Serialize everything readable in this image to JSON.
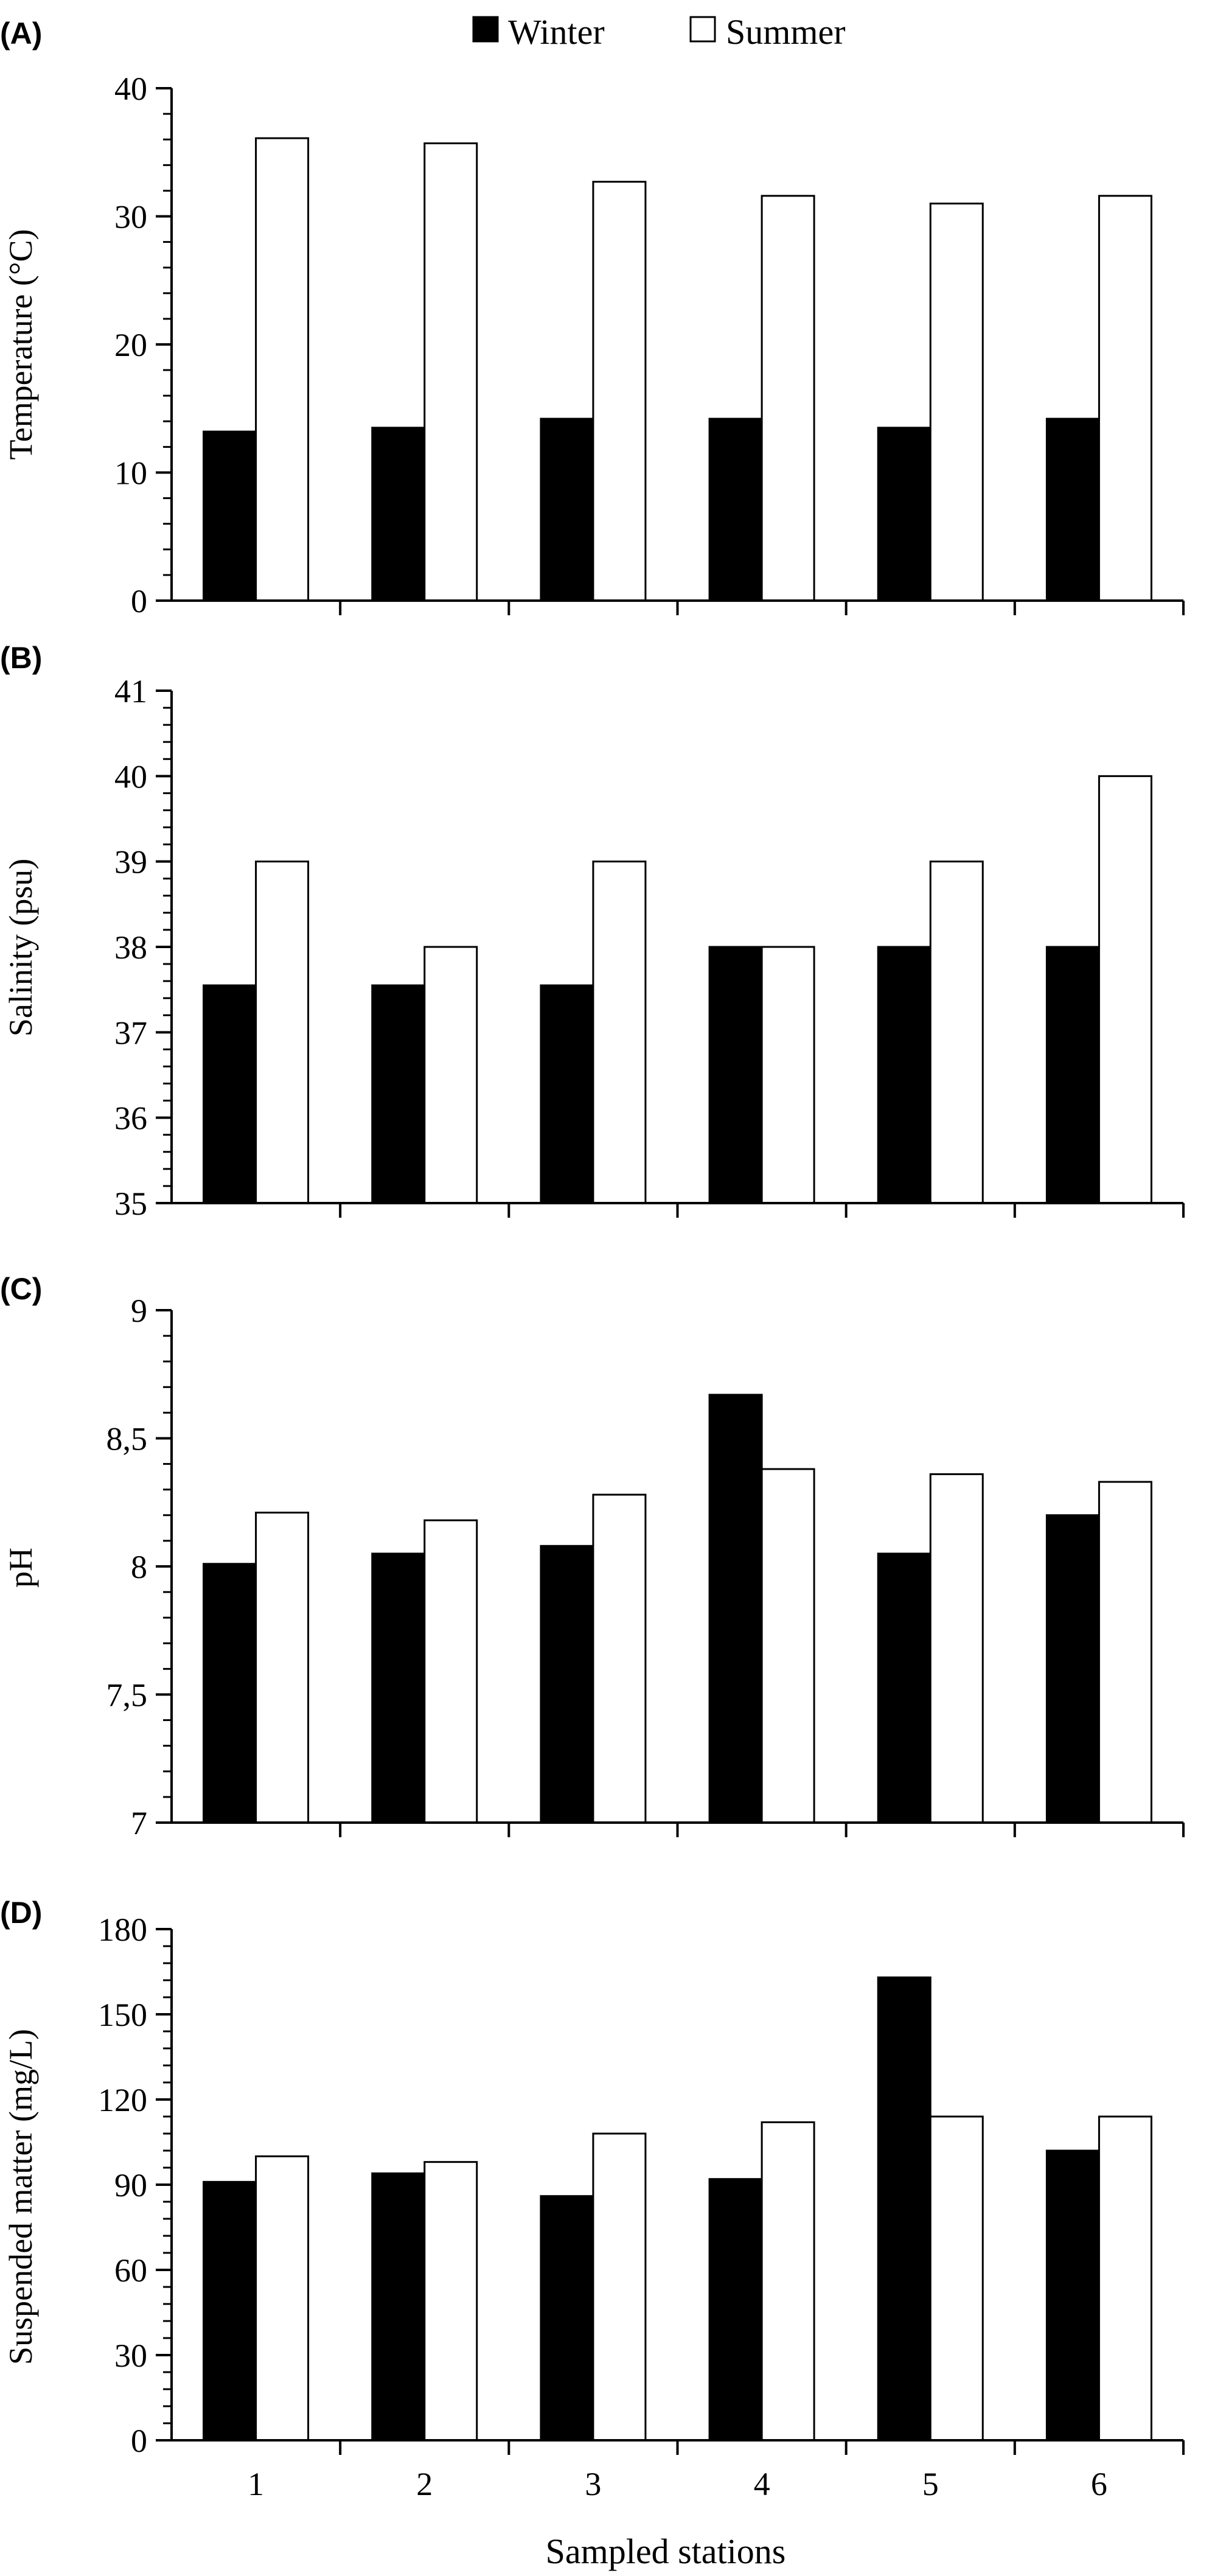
{
  "legend": {
    "placement": "top-center",
    "items": [
      {
        "label": "Winter",
        "color": "#000000"
      },
      {
        "label": "Summer",
        "color": "#ffffff"
      }
    ]
  },
  "chart_data": [
    {
      "panel_label": "(A)",
      "type": "bar",
      "categories": [
        "1",
        "2",
        "3",
        "4",
        "5",
        "6"
      ],
      "series": [
        {
          "name": "Winter",
          "color": "#000000",
          "values": [
            13.2,
            13.5,
            14.2,
            14.2,
            13.5,
            14.2
          ]
        },
        {
          "name": "Summer",
          "color": "#ffffff",
          "values": [
            36.1,
            35.7,
            32.7,
            31.6,
            31.0,
            31.6
          ]
        }
      ],
      "ylabel": "Temperature (°C)",
      "xlabel": "",
      "ylim": [
        0,
        40
      ],
      "yticks": [
        "0",
        "10",
        "20",
        "30",
        "40"
      ],
      "ytick_values": [
        0,
        10,
        20,
        30,
        40
      ],
      "minor_ticks_per_major": 5,
      "show_xtick_labels": false,
      "grid": false
    },
    {
      "panel_label": "(B)",
      "type": "bar",
      "categories": [
        "1",
        "2",
        "3",
        "4",
        "5",
        "6"
      ],
      "series": [
        {
          "name": "Winter",
          "color": "#000000",
          "values": [
            37.55,
            37.55,
            37.55,
            38.0,
            38.0,
            38.0
          ]
        },
        {
          "name": "Summer",
          "color": "#ffffff",
          "values": [
            39.0,
            38.0,
            39.0,
            38.0,
            39.0,
            40.0
          ]
        }
      ],
      "ylabel": "Salinity (psu)",
      "xlabel": "",
      "ylim": [
        35,
        41
      ],
      "yticks": [
        "35",
        "36",
        "37",
        "38",
        "39",
        "40",
        "41"
      ],
      "ytick_values": [
        35,
        36,
        37,
        38,
        39,
        40,
        41
      ],
      "minor_ticks_per_major": 5,
      "show_xtick_labels": false,
      "grid": false
    },
    {
      "panel_label": "(C)",
      "type": "bar",
      "categories": [
        "1",
        "2",
        "3",
        "4",
        "5",
        "6"
      ],
      "series": [
        {
          "name": "Winter",
          "color": "#000000",
          "values": [
            8.01,
            8.05,
            8.08,
            8.67,
            8.05,
            8.2
          ]
        },
        {
          "name": "Summer",
          "color": "#ffffff",
          "values": [
            8.21,
            8.18,
            8.28,
            8.38,
            8.36,
            8.33
          ]
        }
      ],
      "ylabel": "pH",
      "xlabel": "",
      "ylim": [
        7,
        9
      ],
      "yticks": [
        "7",
        "7,5",
        "8",
        "8,5",
        "9"
      ],
      "ytick_values": [
        7,
        7.5,
        8,
        8.5,
        9
      ],
      "minor_ticks_per_major": 5,
      "show_xtick_labels": false,
      "grid": false
    },
    {
      "panel_label": "(D)",
      "type": "bar",
      "categories": [
        "1",
        "2",
        "3",
        "4",
        "5",
        "6"
      ],
      "series": [
        {
          "name": "Winter",
          "color": "#000000",
          "values": [
            91,
            94,
            86,
            92,
            163,
            102
          ]
        },
        {
          "name": "Summer",
          "color": "#ffffff",
          "values": [
            100,
            98,
            108,
            112,
            114,
            114
          ]
        }
      ],
      "ylabel": "Suspended matter (mg/L)",
      "xlabel": "Sampled stations",
      "ylim": [
        0,
        180
      ],
      "yticks": [
        "0",
        "30",
        "60",
        "90",
        "120",
        "150",
        "180"
      ],
      "ytick_values": [
        0,
        30,
        60,
        90,
        120,
        150,
        180
      ],
      "minor_ticks_per_major": 5,
      "show_xtick_labels": true,
      "grid": false
    }
  ]
}
